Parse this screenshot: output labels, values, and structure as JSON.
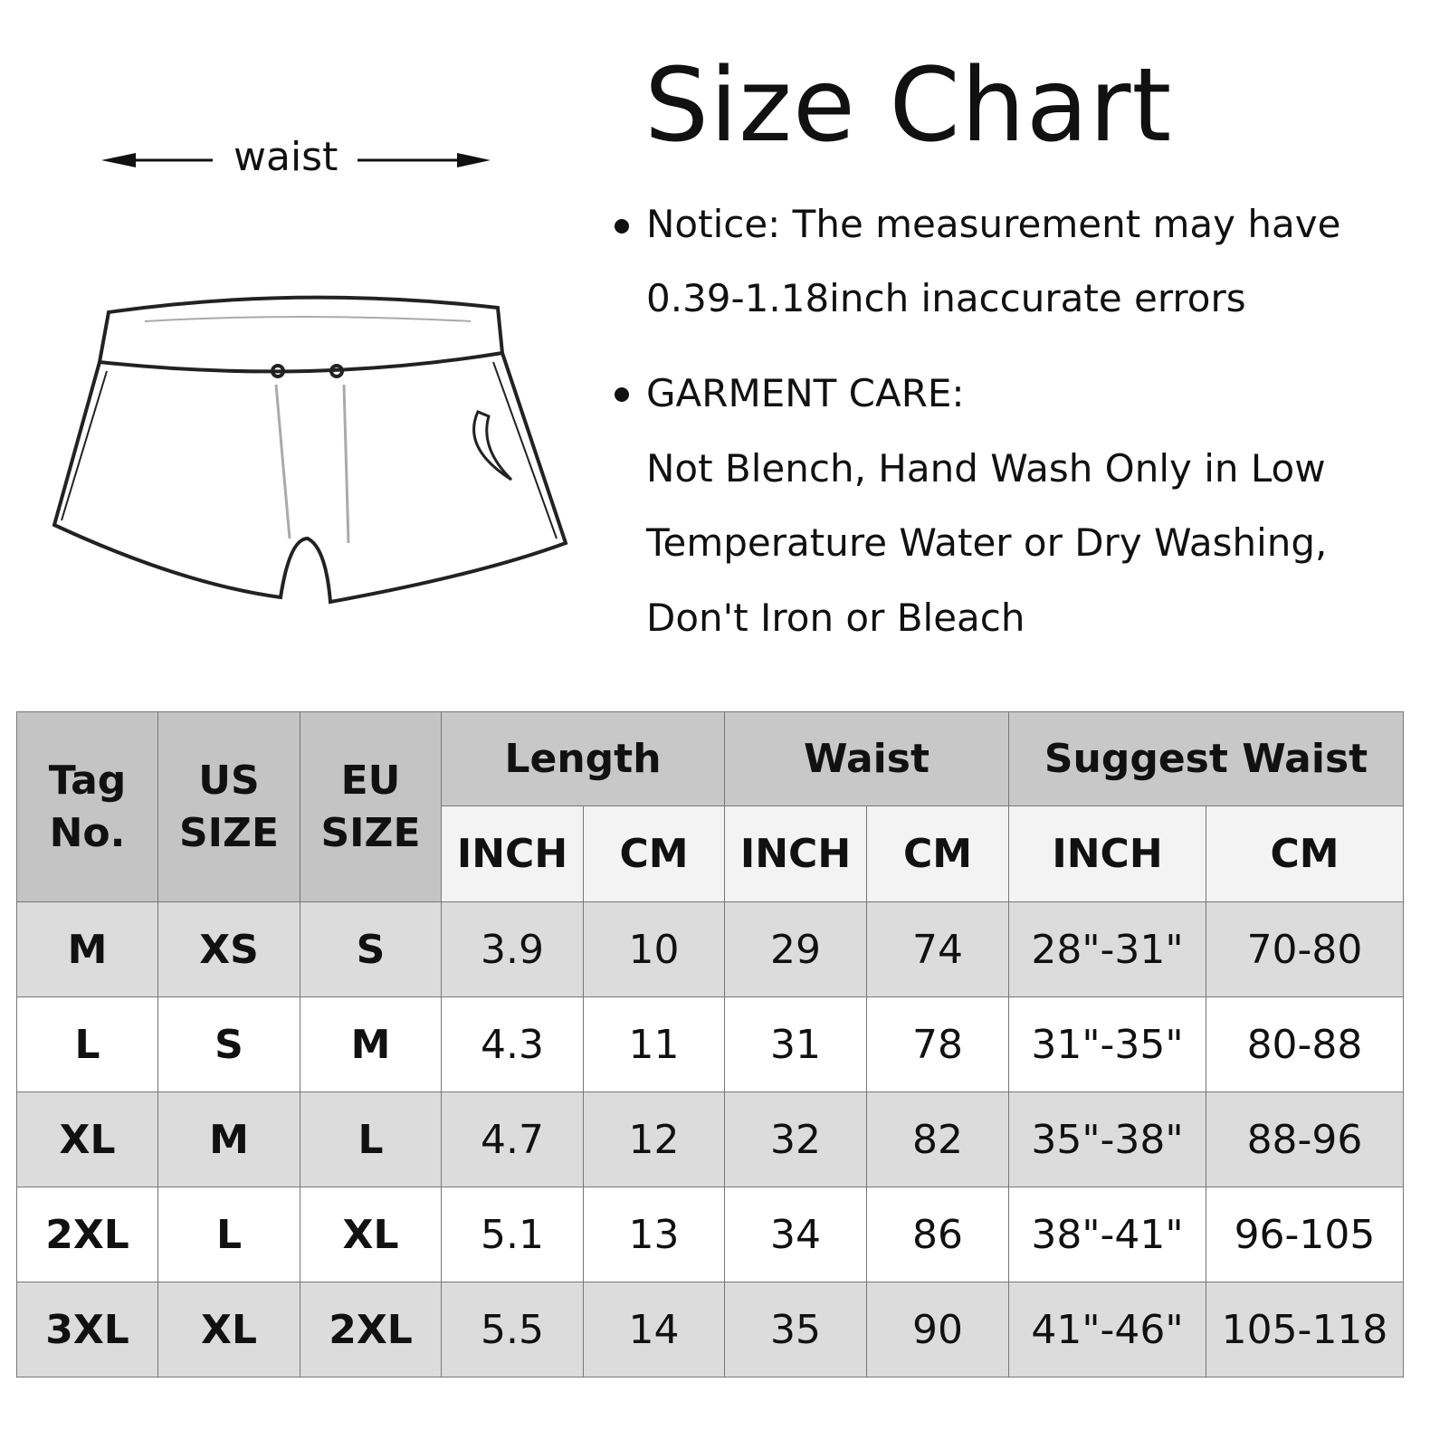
{
  "title": "Size Chart",
  "diagram": {
    "waist_label": "waist"
  },
  "notes": [
    "Notice: The measurement may have",
    "0.39-1.18inch inaccurate errors",
    "GARMENT CARE:",
    "Not Blench, Hand Wash Only in Low",
    "Temperature Water or Dry Washing,",
    "Don't Iron or Bleach"
  ],
  "table": {
    "headers": {
      "tag_1": "Tag",
      "tag_2": "No.",
      "us_1": "US",
      "us_2": "SIZE",
      "eu_1": "EU",
      "eu_2": "SIZE",
      "length": "Length",
      "waist": "Waist",
      "suggest": "Suggest Waist",
      "inch": "INCH",
      "cm": "CM"
    },
    "rows": [
      [
        "M",
        "XS",
        "S",
        "3.9",
        "10",
        "29",
        "74",
        "28\"-31\"",
        "70-80"
      ],
      [
        "L",
        "S",
        "M",
        "4.3",
        "11",
        "31",
        "78",
        "31\"-35\"",
        "80-88"
      ],
      [
        "XL",
        "M",
        "L",
        "4.7",
        "12",
        "32",
        "82",
        "35\"-38\"",
        "88-96"
      ],
      [
        "2XL",
        "L",
        "XL",
        "5.1",
        "13",
        "34",
        "86",
        "38\"-41\"",
        "96-105"
      ],
      [
        "3XL",
        "XL",
        "2XL",
        "5.5",
        "14",
        "35",
        "90",
        "41\"-46\"",
        "105-118"
      ]
    ]
  }
}
